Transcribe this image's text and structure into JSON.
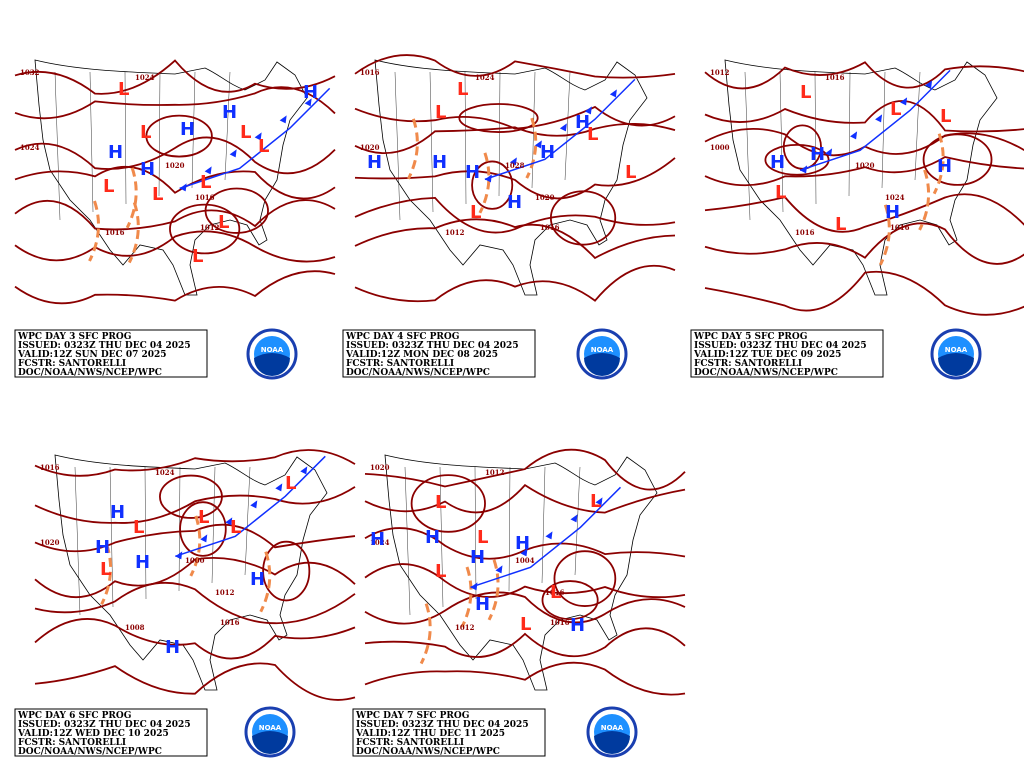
{
  "panels": [
    {
      "caption": [
        "WPC DAY 3 SFC PROG",
        "ISSUED: 0323Z THU DEC 04 2025",
        "VALID:12Z SUN DEC 07 2025",
        "FCSTR: SANTORELLI",
        "DOC/NOAA/NWS/NCEP/WPC"
      ],
      "logo": "NOAA",
      "centers": [
        "H",
        "H",
        "H",
        "H",
        "H",
        "L",
        "L",
        "L",
        "L",
        "L",
        "L",
        "L",
        "L",
        "L"
      ],
      "isobars": [
        "1032",
        "1024",
        "1024",
        "1020",
        "1016",
        "1012",
        "1016"
      ]
    },
    {
      "caption": [
        "WPC DAY 4 SFC PROG",
        "ISSUED: 0323Z THU DEC 04 2025",
        "VALID:12Z MON DEC 08 2025",
        "FCSTR: SANTORELLI",
        "DOC/NOAA/NWS/NCEP/WPC"
      ],
      "logo": "NOAA",
      "centers": [
        "H",
        "H",
        "H",
        "H",
        "H",
        "H",
        "L",
        "L",
        "L",
        "L",
        "L"
      ],
      "isobars": [
        "1016",
        "1020",
        "1024",
        "1028",
        "1020",
        "1016",
        "1012"
      ]
    },
    {
      "caption": [
        "WPC DAY 5 SFC PROG",
        "ISSUED: 0323Z THU DEC 04 2025",
        "VALID:12Z TUE DEC 09 2025",
        "FCSTR: SANTORELLI",
        "DOC/NOAA/NWS/NCEP/WPC"
      ],
      "logo": "NOAA",
      "centers": [
        "H",
        "H",
        "H",
        "H",
        "L",
        "L",
        "L",
        "L",
        "L"
      ],
      "isobars": [
        "1012",
        "1000",
        "1016",
        "1020",
        "1024",
        "1016",
        "1016"
      ]
    },
    {
      "caption": [
        "WPC DAY 6 SFC PROG",
        "ISSUED: 0323Z THU DEC 04 2025",
        "VALID:12Z WED DEC 10 2025",
        "FCSTR: SANTORELLI",
        "DOC/NOAA/NWS/NCEP/WPC"
      ],
      "logo": "NOAA",
      "centers": [
        "H",
        "H",
        "H",
        "H",
        "H",
        "L",
        "L",
        "L",
        "L",
        "L"
      ],
      "isobars": [
        "1016",
        "1020",
        "1024",
        "1000",
        "1012",
        "1016",
        "1008"
      ]
    },
    {
      "caption": [
        "WPC DAY 7 SFC PROG",
        "ISSUED: 0323Z THU DEC 04 2025",
        "VALID:12Z THU DEC 11 2025",
        "FCSTR: SANTORELLI",
        "DOC/NOAA/NWS/NCEP/WPC"
      ],
      "logo": "NOAA",
      "centers": [
        "H",
        "H",
        "H",
        "H",
        "H",
        "H",
        "L",
        "L",
        "L",
        "L",
        "L",
        "L"
      ],
      "isobars": [
        "1020",
        "1024",
        "1012",
        "1004",
        "1016",
        "1016",
        "1012"
      ]
    }
  ]
}
